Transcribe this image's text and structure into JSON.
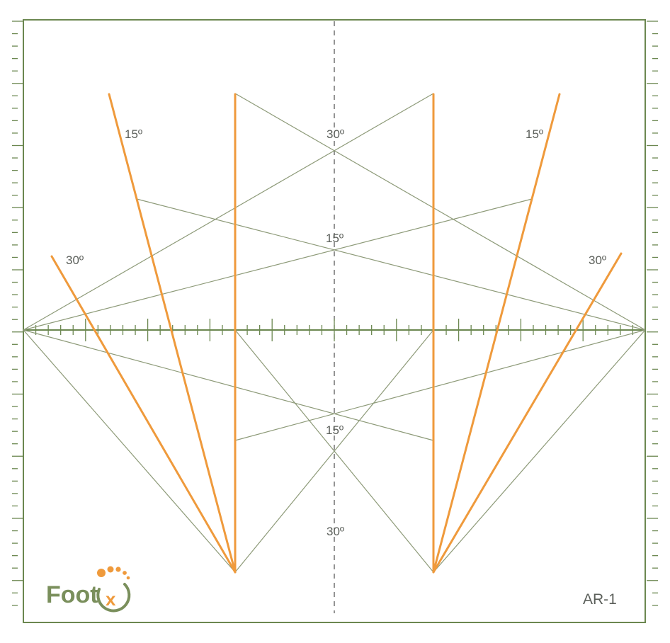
{
  "labels": {
    "upper_left_15": "15º",
    "upper_center_30": "30º",
    "upper_right_15": "15º",
    "center_upper_15": "15º",
    "left_30": "30º",
    "right_30": "30º",
    "center_lower_15": "15º",
    "center_lower_30": "30º"
  },
  "logo": {
    "text": "Foot",
    "mark": "x"
  },
  "template_code": "AR-1",
  "colors": {
    "frame": "#6b8750",
    "guide": "#8d9a78",
    "accent": "#ef9a3c",
    "text": "#5b5f5a"
  }
}
